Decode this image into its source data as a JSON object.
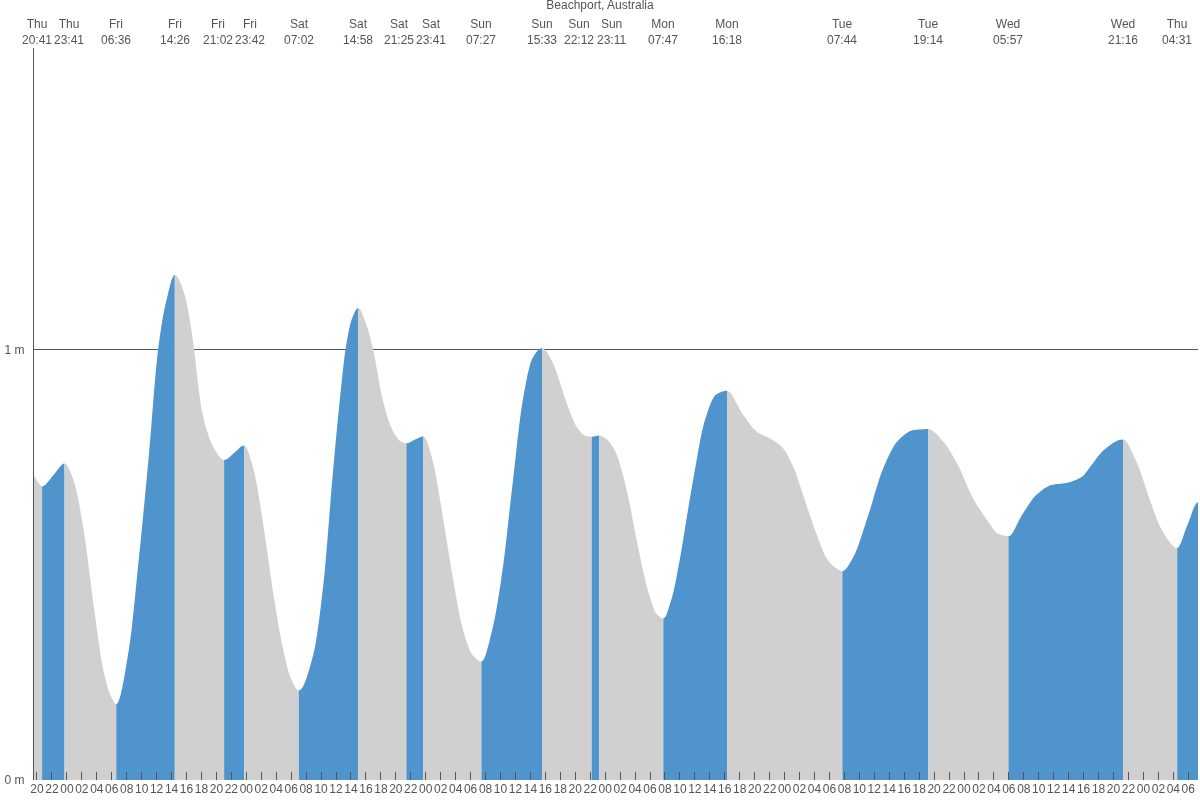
{
  "chart_data": {
    "type": "area",
    "title": "Beachport, Australia",
    "xlim": [
      19.6,
      175.3
    ],
    "ylim": [
      0,
      1.7
    ],
    "grid": "y",
    "yticks": [
      {
        "value": 0,
        "label": "0 m"
      },
      {
        "value": 1,
        "label": "1 m"
      }
    ],
    "xticks": [
      {
        "value": 20,
        "label": "20"
      },
      {
        "value": 22,
        "label": "22"
      },
      {
        "value": 24,
        "label": "00"
      },
      {
        "value": 26,
        "label": "02"
      },
      {
        "value": 28,
        "label": "04"
      },
      {
        "value": 30,
        "label": "06"
      },
      {
        "value": 32,
        "label": "08"
      },
      {
        "value": 34,
        "label": "10"
      },
      {
        "value": 36,
        "label": "12"
      },
      {
        "value": 38,
        "label": "14"
      },
      {
        "value": 40,
        "label": "16"
      },
      {
        "value": 42,
        "label": "18"
      },
      {
        "value": 44,
        "label": "20"
      },
      {
        "value": 46,
        "label": "22"
      },
      {
        "value": 48,
        "label": "00"
      },
      {
        "value": 50,
        "label": "02"
      },
      {
        "value": 52,
        "label": "04"
      },
      {
        "value": 54,
        "label": "06"
      },
      {
        "value": 56,
        "label": "08"
      },
      {
        "value": 58,
        "label": "10"
      },
      {
        "value": 60,
        "label": "12"
      },
      {
        "value": 62,
        "label": "14"
      },
      {
        "value": 64,
        "label": "16"
      },
      {
        "value": 66,
        "label": "18"
      },
      {
        "value": 68,
        "label": "20"
      },
      {
        "value": 70,
        "label": "22"
      },
      {
        "value": 72,
        "label": "00"
      },
      {
        "value": 74,
        "label": "02"
      },
      {
        "value": 76,
        "label": "04"
      },
      {
        "value": 78,
        "label": "06"
      },
      {
        "value": 80,
        "label": "08"
      },
      {
        "value": 82,
        "label": "10"
      },
      {
        "value": 84,
        "label": "12"
      },
      {
        "value": 86,
        "label": "14"
      },
      {
        "value": 88,
        "label": "16"
      },
      {
        "value": 90,
        "label": "18"
      },
      {
        "value": 92,
        "label": "20"
      },
      {
        "value": 94,
        "label": "22"
      },
      {
        "value": 96,
        "label": "00"
      },
      {
        "value": 98,
        "label": "02"
      },
      {
        "value": 100,
        "label": "04"
      },
      {
        "value": 102,
        "label": "06"
      },
      {
        "value": 104,
        "label": "08"
      },
      {
        "value": 106,
        "label": "10"
      },
      {
        "value": 108,
        "label": "12"
      },
      {
        "value": 110,
        "label": "14"
      },
      {
        "value": 112,
        "label": "16"
      },
      {
        "value": 114,
        "label": "18"
      },
      {
        "value": 116,
        "label": "20"
      },
      {
        "value": 118,
        "label": "22"
      },
      {
        "value": 120,
        "label": "00"
      },
      {
        "value": 122,
        "label": "02"
      },
      {
        "value": 124,
        "label": "04"
      },
      {
        "value": 126,
        "label": "06"
      },
      {
        "value": 128,
        "label": "08"
      },
      {
        "value": 130,
        "label": "10"
      },
      {
        "value": 132,
        "label": "12"
      },
      {
        "value": 134,
        "label": "14"
      },
      {
        "value": 136,
        "label": "16"
      },
      {
        "value": 138,
        "label": "18"
      },
      {
        "value": 140,
        "label": "20"
      },
      {
        "value": 142,
        "label": "22"
      },
      {
        "value": 144,
        "label": "00"
      },
      {
        "value": 146,
        "label": "02"
      },
      {
        "value": 148,
        "label": "04"
      },
      {
        "value": 150,
        "label": "06"
      },
      {
        "value": 152,
        "label": "08"
      },
      {
        "value": 154,
        "label": "10"
      },
      {
        "value": 156,
        "label": "12"
      },
      {
        "value": 158,
        "label": "14"
      },
      {
        "value": 160,
        "label": "16"
      },
      {
        "value": 162,
        "label": "18"
      },
      {
        "value": 164,
        "label": "20"
      },
      {
        "value": 166,
        "label": "22"
      },
      {
        "value": 168,
        "label": "00"
      },
      {
        "value": 170,
        "label": "02"
      },
      {
        "value": 172,
        "label": "04"
      },
      {
        "value": 174,
        "label": "06"
      }
    ],
    "annotations": [
      "Thu\n20:41",
      "Thu\n23:41",
      "Fri\n06:36",
      "Fri\n14:26",
      "Fri\n21:02",
      "Fri\n23:42",
      "Sat\n07:02",
      "Sat\n14:58",
      "Sat\n21:25",
      "Sat\n23:41",
      "Sun\n07:27",
      "Sun\n15:33",
      "Sun\n22:12",
      "Sun\n23:11",
      "Mon\n07:47",
      "Mon\n16:18",
      "Tue\n07:44",
      "Tue\n19:14",
      "Wed\n05:57",
      "Wed\n21:16",
      "Thu\n04:31"
    ],
    "series": [
      {
        "color": "#d0d0d0",
        "x": [
          19.6,
          20.1,
          20.683
        ],
        "values": [
          0.705,
          0.692,
          0.682
        ]
      },
      {
        "color": "#4f94cd",
        "x": [
          20.683,
          22.28,
          23.683
        ],
        "values": [
          0.682,
          0.71,
          0.735
        ]
      },
      {
        "color": "#d0d0d0",
        "x": [
          23.683,
          24.92,
          26.26,
          27.59,
          28.93,
          29.93,
          30.6
        ],
        "values": [
          0.735,
          0.694,
          0.578,
          0.404,
          0.251,
          0.193,
          0.176
        ]
      },
      {
        "color": "#4f94cd",
        "x": [
          30.6,
          32.26,
          33.6,
          34.94,
          36.2,
          37.26,
          38.433
        ],
        "values": [
          0.176,
          0.3,
          0.51,
          0.75,
          1.0,
          1.11,
          1.173
        ]
      },
      {
        "color": "#d0d0d0",
        "x": [
          38.433,
          39.7,
          40.61,
          41.0,
          42.03,
          42.94,
          43.85,
          45.033
        ],
        "values": [
          1.173,
          1.13,
          1.05,
          1.0,
          0.86,
          0.8,
          0.765,
          0.743
        ]
      },
      {
        "color": "#4f94cd",
        "x": [
          45.033,
          46.4,
          47.7
        ],
        "values": [
          0.743,
          0.76,
          0.777
        ]
      },
      {
        "color": "#d0d0d0",
        "x": [
          47.7,
          48.94,
          50.27,
          51.61,
          52.94,
          53.94,
          55.033
        ],
        "values": [
          0.777,
          0.723,
          0.593,
          0.433,
          0.302,
          0.237,
          0.208
        ]
      },
      {
        "color": "#4f94cd",
        "x": [
          55.033,
          56.94,
          58.28,
          59.61,
          60.61,
          61.27,
          62.1,
          62.967
        ],
        "values": [
          0.208,
          0.29,
          0.45,
          0.72,
          0.9,
          1.0,
          1.07,
          1.096
        ]
      },
      {
        "color": "#d0d0d0",
        "x": [
          62.967,
          64.0,
          64.95,
          66.28,
          67.62,
          68.61,
          69.417
        ],
        "values": [
          1.096,
          1.06,
          1.0,
          0.88,
          0.81,
          0.787,
          0.782
        ]
      },
      {
        "color": "#4f94cd",
        "x": [
          69.417,
          70.5,
          71.683
        ],
        "values": [
          0.782,
          0.79,
          0.798
        ]
      },
      {
        "color": "#d0d0d0",
        "x": [
          71.683,
          72.95,
          74.29,
          75.62,
          76.96,
          78.28,
          79.45
        ],
        "values": [
          0.798,
          0.74,
          0.61,
          0.47,
          0.35,
          0.29,
          0.275
        ]
      },
      {
        "color": "#4f94cd",
        "x": [
          79.45,
          80.91,
          82.29,
          83.63,
          84.96,
          86.29,
          87.55
        ],
        "values": [
          0.275,
          0.35,
          0.49,
          0.69,
          0.88,
          0.98,
          1.003
        ]
      },
      {
        "color": "#d0d0d0",
        "x": [
          87.55,
          88.96,
          90.0,
          90.96,
          92.3,
          93.3,
          94.2
        ],
        "values": [
          1.003,
          0.97,
          0.92,
          0.87,
          0.817,
          0.8,
          0.797
        ]
      },
      {
        "color": "#4f94cd",
        "x": [
          94.2,
          95.183
        ],
        "values": [
          0.797,
          0.8
        ]
      },
      {
        "color": "#d0d0d0",
        "x": [
          95.183,
          96.3,
          97.43,
          98.92,
          100.41,
          101.89,
          102.9,
          103.783
        ],
        "values": [
          0.8,
          0.79,
          0.76,
          0.67,
          0.54,
          0.43,
          0.385,
          0.375
        ]
      },
      {
        "color": "#4f94cd",
        "x": [
          103.783,
          104.87,
          105.96,
          107.01,
          108.0,
          109.25,
          110.83,
          112.3
        ],
        "values": [
          0.375,
          0.42,
          0.51,
          0.62,
          0.72,
          0.83,
          0.895,
          0.904
        ]
      },
      {
        "color": "#d0d0d0",
        "x": [
          112.3,
          114.31,
          116.29,
          118.28,
          119.77,
          121.26,
          122.76,
          124.25,
          125.73,
          126.97,
          127.733
        ],
        "values": [
          0.904,
          0.852,
          0.809,
          0.791,
          0.771,
          0.723,
          0.647,
          0.572,
          0.512,
          0.491,
          0.485
        ]
      },
      {
        "color": "#4f94cd",
        "x": [
          127.733,
          129.2,
          131.19,
          133.17,
          135.17,
          137.15,
          139.233
        ],
        "values": [
          0.485,
          0.518,
          0.615,
          0.723,
          0.788,
          0.812,
          0.815
        ]
      },
      {
        "color": "#d0d0d0",
        "x": [
          139.233,
          141.12,
          143.11,
          145.1,
          147.08,
          148.57,
          149.95
        ],
        "values": [
          0.815,
          0.788,
          0.734,
          0.658,
          0.604,
          0.572,
          0.566
        ]
      },
      {
        "color": "#4f94cd",
        "x": [
          149.95,
          151.74,
          153.73,
          155.71,
          157.7,
          159.68,
          161.17,
          162.67,
          165.267
        ],
        "values": [
          0.566,
          0.615,
          0.663,
          0.685,
          0.69,
          0.703,
          0.734,
          0.766,
          0.791
        ]
      },
      {
        "color": "#d0d0d0",
        "x": [
          165.267,
          166.94,
          168.93,
          170.42,
          172.517
        ],
        "values": [
          0.791,
          0.744,
          0.647,
          0.582,
          0.539
        ]
      },
      {
        "color": "#4f94cd",
        "x": [
          172.517,
          173.9,
          175.3
        ],
        "values": [
          0.539,
          0.593,
          0.645
        ]
      }
    ]
  }
}
